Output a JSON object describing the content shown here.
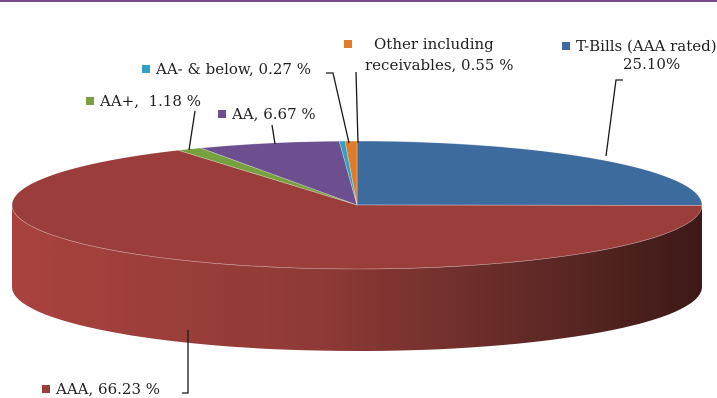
{
  "chart_data": {
    "type": "pie",
    "three_d": true,
    "legend": "none",
    "slices": [
      {
        "key": "tbills",
        "label": "T-Bills (AAA rated),",
        "label2": "25.10%",
        "value": 25.1,
        "color": "#3d6b9e"
      },
      {
        "key": "aaa",
        "label": "AAA,",
        "label2": "66.23 %",
        "value": 66.23,
        "color": "#9e3d3a"
      },
      {
        "key": "aaplus",
        "label": "AA+,",
        "label2": "1.18 %",
        "value": 1.18,
        "color": "#77a03e"
      },
      {
        "key": "aa",
        "label": "AA,",
        "label2": "6.67 %",
        "value": 6.67,
        "color": "#6d4f8f"
      },
      {
        "key": "aaminus",
        "label": "AA- & below,",
        "label2": "0.27 %",
        "value": 0.27,
        "color": "#31a1c0"
      },
      {
        "key": "other",
        "label": "Other including",
        "label2": "receivables,  0.55 %",
        "value": 0.55,
        "color": "#e07b2c"
      }
    ]
  }
}
